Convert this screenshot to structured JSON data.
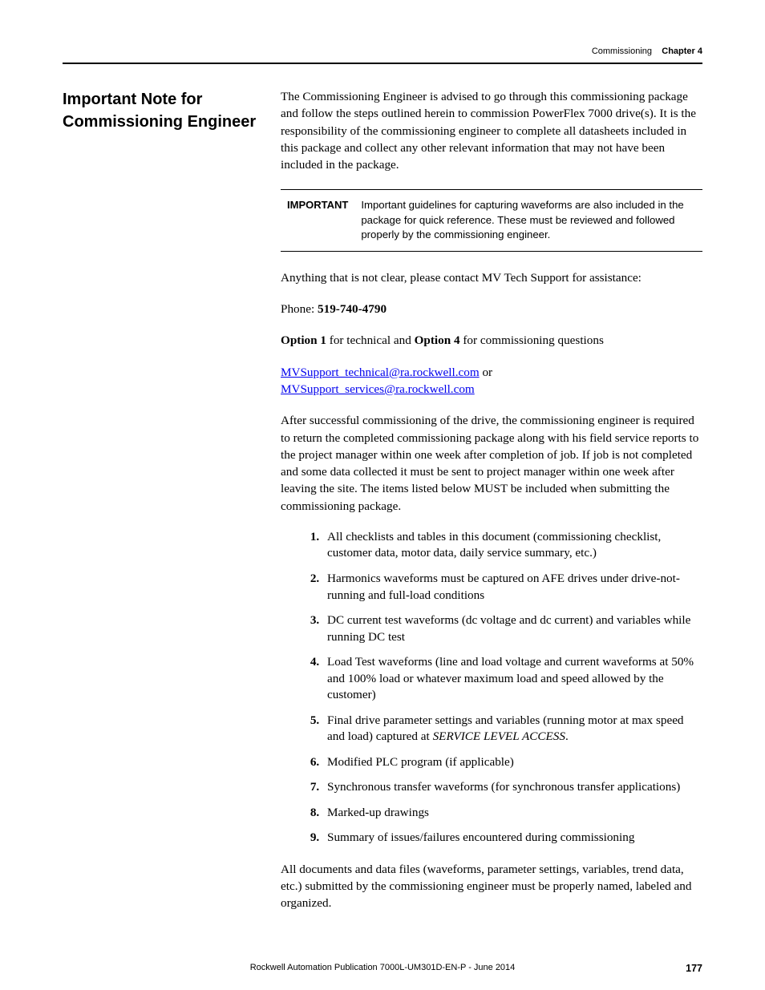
{
  "header": {
    "section": "Commissioning",
    "chapter_label": "Chapter 4"
  },
  "heading": "Important Note for Commissioning Engineer",
  "intro": "The Commissioning Engineer is advised to go through this commissioning package and follow the steps outlined herein to commission PowerFlex 7000 drive(s). It is the responsibility of the commissioning engineer to complete all datasheets included in this package and collect any other relevant information that may not have been included in the package.",
  "important_box": {
    "label": "IMPORTANT",
    "text": "Important guidelines for capturing waveforms are also included in the package for quick reference. These must be reviewed and followed properly by the commissioning engineer."
  },
  "contact_line": "Anything that is not clear, please contact MV Tech Support for assistance:",
  "phone_label": "Phone: ",
  "phone_number": "519-740-4790",
  "options_pre1": "Option 1",
  "options_mid": " for technical and ",
  "options_pre4": "Option 4",
  "options_tail": " for commissioning questions",
  "email1": "MVSupport_technical@ra.rockwell.com",
  "email_or": " or",
  "email2": "MVSupport_services@ra.rockwell.com",
  "return_para": "After successful commissioning of the drive, the commissioning engineer is required to return the completed commissioning package along with his field service reports to the project manager within one week after completion of job. If job is not completed and some data collected it must be sent to project manager within one week after leaving the site. The items listed below MUST be included when submitting the commissioning package.",
  "items": [
    "All checklists and tables in this document (commissioning checklist, customer data, motor data, daily service summary, etc.)",
    "Harmonics waveforms must be captured on AFE drives under drive-not-running and full-load conditions",
    "DC current test waveforms (dc voltage and dc current) and variables while running DC test",
    "Load Test waveforms (line and load voltage and current waveforms at 50% and 100% load or whatever maximum load and speed allowed by the customer)"
  ],
  "item5_pre": "Final drive parameter settings and variables (running motor at max speed and load) captured at ",
  "item5_italic": "SERVICE LEVEL ACCESS",
  "item5_post": ".",
  "items_tail": [
    "Modified PLC program (if applicable)",
    "Synchronous transfer waveforms (for synchronous transfer applications)",
    "Marked-up drawings",
    "Summary of issues/failures encountered during commissioning"
  ],
  "closing": "All documents and data files (waveforms, parameter settings, variables, trend data, etc.) submitted by the commissioning engineer must be properly named, labeled and organized.",
  "footer": {
    "publication": "Rockwell Automation Publication 7000L-UM301D-EN-P - June 2014",
    "page_number": "177"
  }
}
